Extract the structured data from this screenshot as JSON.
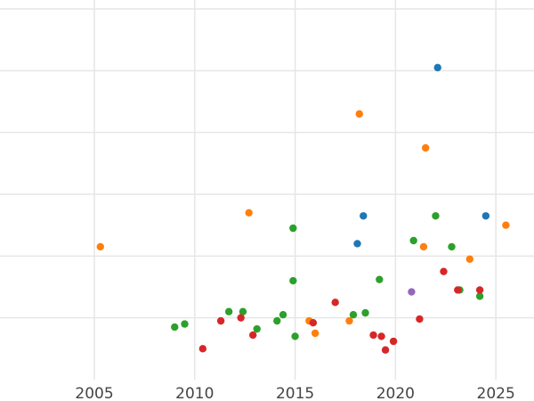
{
  "chart_data": {
    "type": "scatter",
    "title": "",
    "xlabel": "",
    "ylabel": "",
    "xlim": [
      2000.3,
      2026.9
    ],
    "ylim": [
      0,
      6
    ],
    "x_ticks": [
      2005,
      2010,
      2015,
      2020,
      2025
    ],
    "x_tick_labels": [
      "2005",
      "2010",
      "2015",
      "2020",
      "2025"
    ],
    "y_gridlines": [
      1,
      2,
      3,
      4,
      5,
      6
    ],
    "grid": true,
    "series": [
      {
        "color": "#1f77b4",
        "points": [
          [
            2022.1,
            5.05
          ],
          [
            2018.4,
            2.65
          ],
          [
            2018.1,
            2.2
          ],
          [
            2024.5,
            2.65
          ]
        ]
      },
      {
        "color": "#ff7f0e",
        "points": [
          [
            2005.3,
            2.15
          ],
          [
            2012.7,
            2.7
          ],
          [
            2015.7,
            0.95
          ],
          [
            2016.0,
            0.75
          ],
          [
            2017.7,
            0.95
          ],
          [
            2018.2,
            4.3
          ],
          [
            2021.5,
            3.75
          ],
          [
            2021.4,
            2.15
          ],
          [
            2023.7,
            1.95
          ],
          [
            2025.5,
            2.5
          ]
        ]
      },
      {
        "color": "#2ca02c",
        "points": [
          [
            2009.0,
            0.85
          ],
          [
            2009.5,
            0.9
          ],
          [
            2011.7,
            1.1
          ],
          [
            2012.4,
            1.1
          ],
          [
            2013.1,
            0.82
          ],
          [
            2014.1,
            0.95
          ],
          [
            2014.4,
            1.05
          ],
          [
            2014.9,
            1.6
          ],
          [
            2015.0,
            0.7
          ],
          [
            2014.9,
            2.45
          ],
          [
            2017.9,
            1.05
          ],
          [
            2018.5,
            1.08
          ],
          [
            2019.2,
            1.62
          ],
          [
            2020.9,
            2.25
          ],
          [
            2022.0,
            2.65
          ],
          [
            2022.8,
            2.15
          ],
          [
            2023.2,
            1.45
          ],
          [
            2024.2,
            1.35
          ]
        ]
      },
      {
        "color": "#d62728",
        "points": [
          [
            2010.4,
            0.5
          ],
          [
            2011.3,
            0.95
          ],
          [
            2012.3,
            1.0
          ],
          [
            2012.9,
            0.72
          ],
          [
            2015.9,
            0.92
          ],
          [
            2017.0,
            1.25
          ],
          [
            2018.9,
            0.72
          ],
          [
            2019.3,
            0.7
          ],
          [
            2019.5,
            0.48
          ],
          [
            2019.9,
            0.62
          ],
          [
            2021.2,
            0.98
          ],
          [
            2022.4,
            1.75
          ],
          [
            2023.1,
            1.45
          ],
          [
            2024.2,
            1.45
          ]
        ]
      },
      {
        "color": "#9467bd",
        "points": [
          [
            2020.8,
            1.42
          ]
        ]
      }
    ]
  }
}
